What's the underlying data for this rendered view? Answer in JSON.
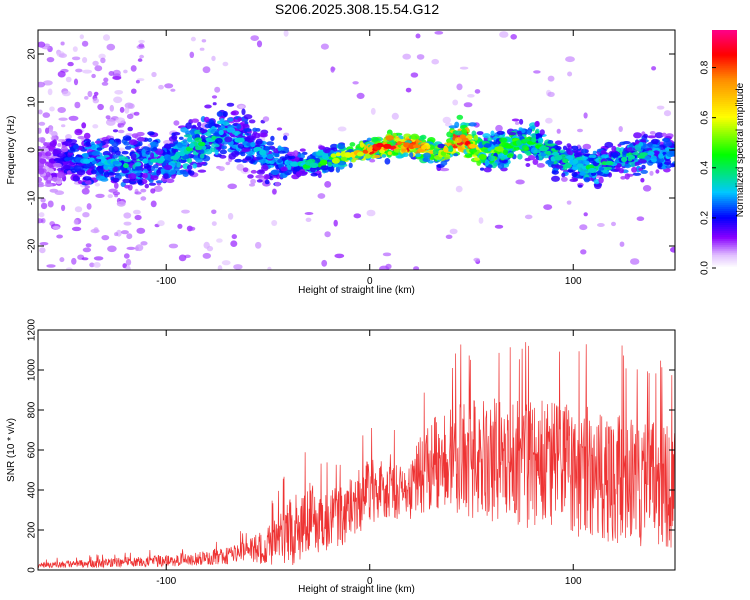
{
  "title": "S206.2025.308.15.54.G12",
  "chart_data": [
    {
      "type": "heatmap",
      "xlabel": "Height of straight line (km)",
      "ylabel": "Frequency (Hz)",
      "xlim": [
        -163,
        150
      ],
      "ylim": [
        -25,
        25
      ],
      "xticks": [
        -100,
        0,
        100
      ],
      "yticks": [
        -20,
        -10,
        0,
        10,
        20
      ],
      "colorbar": {
        "label": "Normalized spectral amplitude",
        "range": [
          0,
          0.95
        ],
        "ticks": [
          0.0,
          0.2,
          0.4,
          0.6,
          0.8
        ]
      },
      "ridge": [
        {
          "x": -160,
          "f": -2,
          "a": 0.1
        },
        {
          "x": -140,
          "f": -2,
          "a": 0.3
        },
        {
          "x": -120,
          "f": -3,
          "a": 0.35
        },
        {
          "x": -100,
          "f": -2,
          "a": 0.3
        },
        {
          "x": -85,
          "f": 1,
          "a": 0.4
        },
        {
          "x": -70,
          "f": 4,
          "a": 0.3
        },
        {
          "x": -55,
          "f": 0,
          "a": 0.3
        },
        {
          "x": -40,
          "f": -3,
          "a": 0.3
        },
        {
          "x": -30,
          "f": -3,
          "a": 0.4
        },
        {
          "x": -20,
          "f": -2,
          "a": 0.5
        },
        {
          "x": -10,
          "f": -1,
          "a": 0.6
        },
        {
          "x": 0,
          "f": 0,
          "a": 0.8
        },
        {
          "x": 10,
          "f": 1,
          "a": 0.9
        },
        {
          "x": 20,
          "f": 1,
          "a": 0.85
        },
        {
          "x": 30,
          "f": 0,
          "a": 0.7
        },
        {
          "x": 35,
          "f": -1,
          "a": 0.55
        },
        {
          "x": 45,
          "f": 3,
          "a": 0.95
        },
        {
          "x": 55,
          "f": -1,
          "a": 0.5
        },
        {
          "x": 70,
          "f": 1,
          "a": 0.5
        },
        {
          "x": 80,
          "f": 2,
          "a": 0.45
        },
        {
          "x": 90,
          "f": -1,
          "a": 0.4
        },
        {
          "x": 100,
          "f": -3,
          "a": 0.35
        },
        {
          "x": 110,
          "f": -4,
          "a": 0.4
        },
        {
          "x": 120,
          "f": -2,
          "a": 0.35
        },
        {
          "x": 130,
          "f": -1,
          "a": 0.4
        },
        {
          "x": 140,
          "f": -1,
          "a": 0.35
        },
        {
          "x": 150,
          "f": -1,
          "a": 0.3
        }
      ]
    },
    {
      "type": "line",
      "xlabel": "Height of straight line (km)",
      "ylabel": "SNR (10 * v/v)",
      "xlim": [
        -163,
        150
      ],
      "ylim": [
        0,
        1200
      ],
      "xticks": [
        -100,
        0,
        100
      ],
      "yticks": [
        0,
        200,
        400,
        600,
        800,
        1000,
        1200
      ],
      "color": "#ee3333",
      "envelope": {
        "x": [
          -163,
          -140,
          -120,
          -100,
          -80,
          -60,
          -45,
          -38,
          -30,
          -20,
          -10,
          0,
          10,
          18,
          25,
          35,
          50,
          70,
          90,
          110,
          130,
          150
        ],
        "mean": [
          25,
          30,
          40,
          45,
          60,
          90,
          140,
          220,
          260,
          240,
          300,
          390,
          420,
          360,
          480,
          560,
          560,
          540,
          520,
          480,
          440,
          420
        ],
        "spread": [
          15,
          20,
          25,
          30,
          35,
          60,
          120,
          200,
          180,
          150,
          160,
          180,
          160,
          120,
          200,
          250,
          300,
          320,
          330,
          330,
          320,
          320
        ]
      }
    }
  ]
}
